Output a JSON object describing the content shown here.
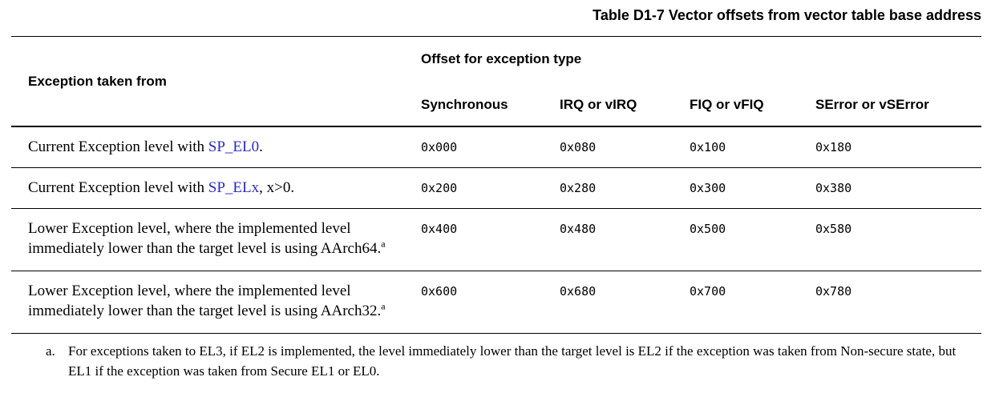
{
  "title": "Table D1-7 Vector offsets from vector table base address",
  "table": {
    "row_header": "Exception taken from",
    "group_header": "Offset for exception type",
    "columns": [
      "Synchronous",
      "IRQ or vIRQ",
      "FIQ or vFIQ",
      "SError or vSError"
    ],
    "rows": [
      {
        "prefix": "Current Exception level with ",
        "link": "SP_EL0",
        "suffix": ".",
        "footnote_marker": "",
        "offsets": [
          "0x000",
          "0x080",
          "0x100",
          "0x180"
        ]
      },
      {
        "prefix": "Current Exception level with ",
        "link": "SP_ELx",
        "suffix": ", x>0.",
        "footnote_marker": "",
        "offsets": [
          "0x200",
          "0x280",
          "0x300",
          "0x380"
        ]
      },
      {
        "prefix": "Lower Exception level, where the implemented level immediately lower than the target level is using AArch64.",
        "link": "",
        "suffix": "",
        "footnote_marker": "a",
        "offsets": [
          "0x400",
          "0x480",
          "0x500",
          "0x580"
        ]
      },
      {
        "prefix": "Lower Exception level, where the implemented level immediately lower than the target level is using AArch32.",
        "link": "",
        "suffix": "",
        "footnote_marker": "a",
        "offsets": [
          "0x600",
          "0x680",
          "0x700",
          "0x780"
        ]
      }
    ]
  },
  "footnote": {
    "marker": "a.",
    "text": "For exceptions taken to EL3, if EL2 is implemented, the level immediately lower than the target level is EL2 if the exception was taken from Non-secure state, but EL1 if the exception was taken from Secure EL1 or EL0."
  },
  "colors": {
    "link_blue": "#2b2bc0",
    "text": "#000000",
    "background": "#ffffff"
  }
}
